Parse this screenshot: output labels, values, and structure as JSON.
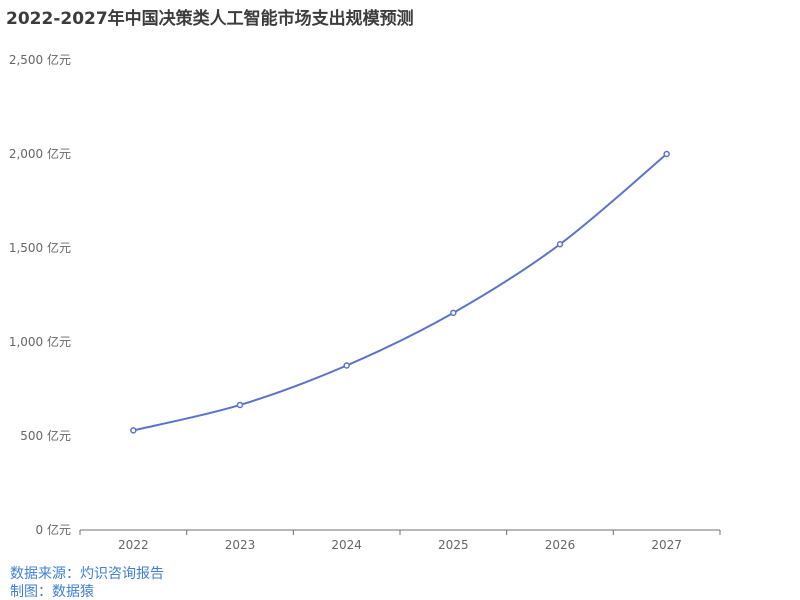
{
  "title": "2022-2027年中国决策类人工智能市场支出规模预测",
  "chart_data": {
    "type": "line",
    "categories": [
      "2022",
      "2023",
      "2024",
      "2025",
      "2026",
      "2027"
    ],
    "series": [
      {
        "values": [
          530,
          665,
          875,
          1155,
          1520,
          2000
        ]
      }
    ],
    "ylim": [
      0,
      2500
    ],
    "y_ticks": [
      0,
      500,
      1000,
      1500,
      2000,
      2500
    ],
    "y_tick_labels": [
      "0 亿元",
      "500 亿元",
      "1,000 亿元",
      "1,500 亿元",
      "2,000 亿元",
      "2,500 亿元"
    ],
    "grid": false,
    "line_color": "#5b73c8"
  },
  "source": {
    "line1": "数据来源：灼识咨询报告",
    "line2": "制图：数据猿"
  }
}
